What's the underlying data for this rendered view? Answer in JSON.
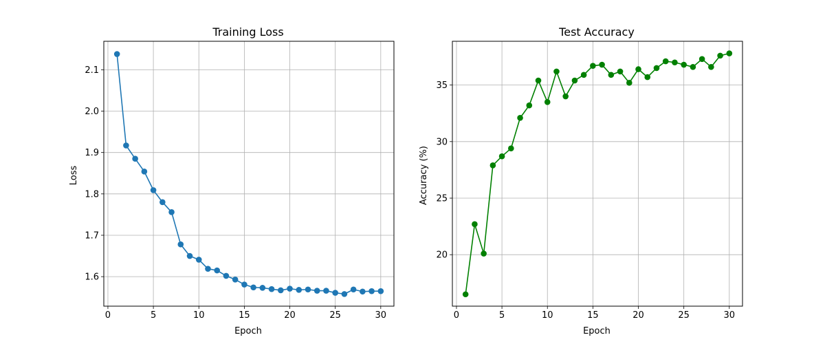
{
  "chart_data": [
    {
      "type": "line",
      "title": "Training Loss",
      "xlabel": "Epoch",
      "ylabel": "Loss",
      "xlim": [
        -0.45,
        31.45
      ],
      "ylim": [
        1.5287,
        2.1688
      ],
      "xticks": [
        0,
        5,
        10,
        15,
        20,
        25,
        30
      ],
      "yticks": [
        1.6,
        1.7,
        1.8,
        1.9,
        2.0,
        2.1
      ],
      "ytick_labels": [
        "1.6",
        "1.7",
        "1.8",
        "1.9",
        "2.0",
        "2.1"
      ],
      "grid": true,
      "color": "#1f77b4",
      "marker": "circle",
      "series": [
        {
          "x": [
            1,
            2,
            3,
            4,
            5,
            6,
            7,
            8,
            9,
            10,
            11,
            12,
            13,
            14,
            15,
            16,
            17,
            18,
            19,
            20,
            21,
            22,
            23,
            24,
            25,
            26,
            27,
            28,
            29,
            30
          ],
          "values": [
            2.138,
            1.917,
            1.885,
            1.854,
            1.809,
            1.78,
            1.756,
            1.678,
            1.65,
            1.641,
            1.619,
            1.615,
            1.602,
            1.593,
            1.581,
            1.574,
            1.573,
            1.57,
            1.567,
            1.571,
            1.568,
            1.569,
            1.566,
            1.566,
            1.561,
            1.558,
            1.569,
            1.564,
            1.565,
            1.565
          ]
        }
      ]
    },
    {
      "type": "line",
      "title": "Test Accuracy",
      "xlabel": "Epoch",
      "ylabel": "Accuracy (%)",
      "xlim": [
        -0.45,
        31.45
      ],
      "ylim": [
        15.45,
        38.87
      ],
      "xticks": [
        0,
        5,
        10,
        15,
        20,
        25,
        30
      ],
      "yticks": [
        20,
        25,
        30,
        35
      ],
      "ytick_labels": [
        "20",
        "25",
        "30",
        "35"
      ],
      "grid": true,
      "color": "#008000",
      "marker": "circle",
      "series": [
        {
          "x": [
            1,
            2,
            3,
            4,
            5,
            6,
            7,
            8,
            9,
            10,
            11,
            12,
            13,
            14,
            15,
            16,
            17,
            18,
            19,
            20,
            21,
            22,
            23,
            24,
            25,
            26,
            27,
            28,
            29,
            30
          ],
          "values": [
            16.5,
            22.7,
            20.1,
            27.9,
            28.7,
            29.4,
            32.1,
            33.2,
            35.4,
            33.5,
            36.2,
            34.0,
            35.4,
            35.9,
            36.7,
            36.8,
            35.9,
            36.2,
            35.2,
            36.4,
            35.7,
            36.5,
            37.1,
            37.0,
            36.8,
            36.6,
            37.3,
            36.6,
            37.6,
            37.8
          ]
        }
      ]
    }
  ]
}
